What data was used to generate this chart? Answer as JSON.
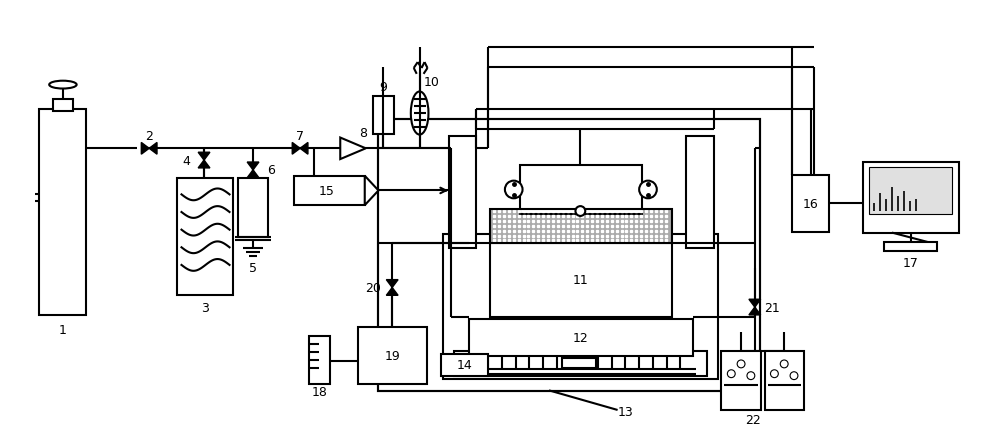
{
  "bg_color": "#ffffff",
  "lc": "#000000",
  "lw": 1.5,
  "fw": 10.0,
  "fh": 4.27,
  "dpi": 100
}
